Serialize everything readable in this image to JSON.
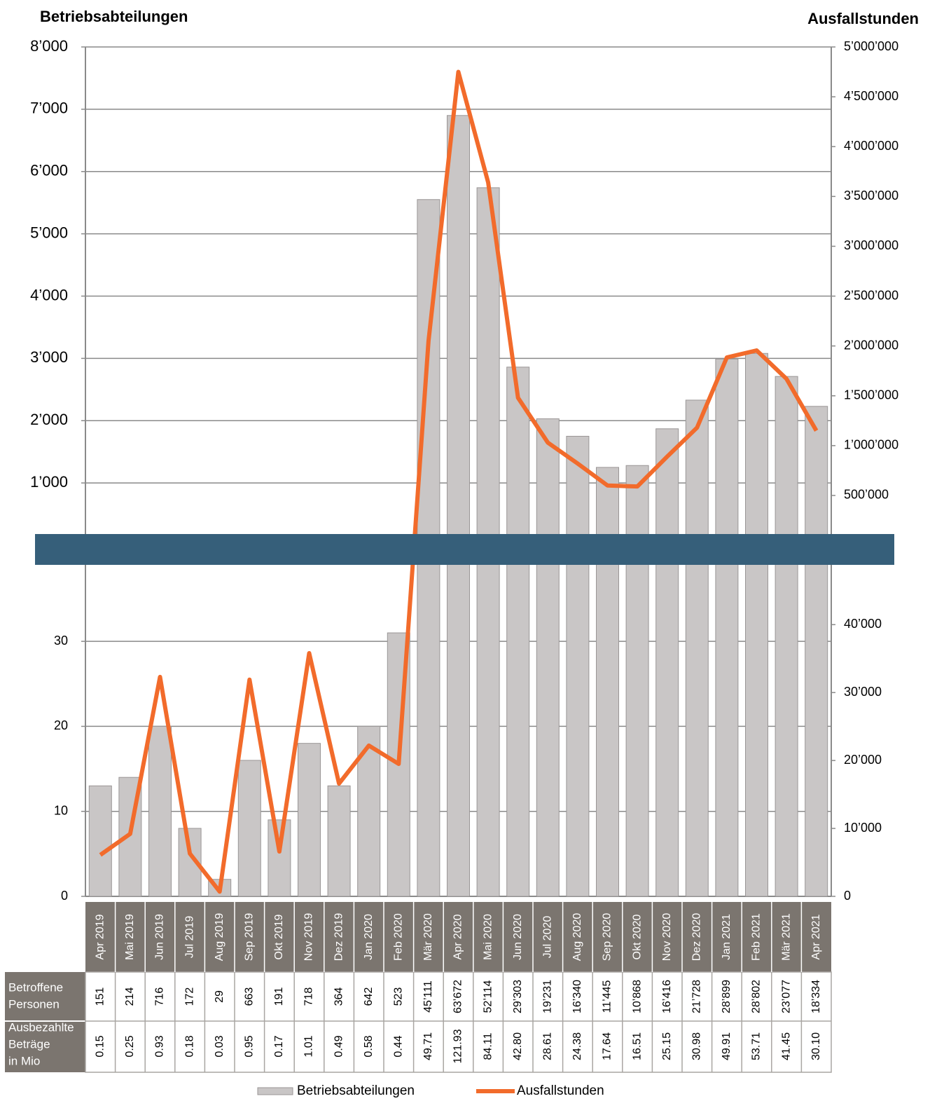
{
  "chart_data": {
    "type": "bar",
    "ylabel": "Betriebsabteilungen",
    "y2label": "Ausfallstunden",
    "categories": [
      "Apr 2019",
      "Mai 2019",
      "Jun 2019",
      "Jul 2019",
      "Aug 2019",
      "Sep 2019",
      "Okt 2019",
      "Nov 2019",
      "Dez 2019",
      "Jan 2020",
      "Feb 2020",
      "Mär 2020",
      "Apr 2020",
      "Mai 2020",
      "Jun 2020",
      "Jul 2020",
      "Aug 2020",
      "Sep 2020",
      "Okt 2020",
      "Nov 2020",
      "Dez 2020",
      "Jan 2021",
      "Feb 2021",
      "Mär 2021",
      "Apr 2021"
    ],
    "series": [
      {
        "name": "Betriebsabteilungen",
        "type": "bar",
        "color": "#c9c6c6",
        "values": [
          13,
          14,
          20,
          8,
          2,
          16,
          9,
          18,
          13,
          20,
          31,
          5550,
          6900,
          5740,
          2860,
          2030,
          1750,
          1250,
          1280,
          1870,
          2330,
          2990,
          3080,
          2710,
          2230
        ]
      },
      {
        "name": "Ausfallstunden",
        "type": "line",
        "color": "#f26b2b",
        "axis": "y2",
        "values": [
          6100,
          9200,
          32300,
          6300,
          700,
          31900,
          6600,
          35800,
          16600,
          22200,
          19500,
          2050000,
          4750000,
          3640000,
          1480000,
          1030000,
          820000,
          600000,
          590000,
          890000,
          1180000,
          1885000,
          1955000,
          1670000,
          1150000
        ]
      }
    ],
    "panels": [
      {
        "ylim": [
          180,
          8000
        ],
        "yticks": [
          {
            "value": 1000,
            "label": "1’000"
          },
          {
            "value": 2000,
            "label": "2’000"
          },
          {
            "value": 3000,
            "label": "3’000"
          },
          {
            "value": 4000,
            "label": "4’000"
          },
          {
            "value": 5000,
            "label": "5’000"
          },
          {
            "value": 6000,
            "label": "6’000"
          },
          {
            "value": 7000,
            "label": "7’000"
          },
          {
            "value": 8000,
            "label": "8’000"
          }
        ],
        "y2lim": [
          113000,
          5000000
        ],
        "y2ticks": [
          {
            "value": 500000,
            "label": "500’000"
          },
          {
            "value": 1000000,
            "label": "1’000’000"
          },
          {
            "value": 1500000,
            "label": "1’500’000"
          },
          {
            "value": 2000000,
            "label": "2’000’000"
          },
          {
            "value": 2500000,
            "label": "2’500’000"
          },
          {
            "value": 3000000,
            "label": "3’000’000"
          },
          {
            "value": 3500000,
            "label": "3’500’000"
          },
          {
            "value": 4000000,
            "label": "4’000’000"
          },
          {
            "value": 4500000,
            "label": "4’500’000"
          },
          {
            "value": 5000000,
            "label": "5’000’000"
          }
        ]
      },
      {
        "ylim": [
          0,
          39
        ],
        "yticks": [
          0,
          10,
          20,
          30
        ],
        "y2lim": [
          0,
          48800
        ],
        "y2ticks": [
          0,
          {
            "value": 10000,
            "label": "10’000"
          },
          {
            "value": 20000,
            "label": "20’000"
          },
          {
            "value": 30000,
            "label": "30’000"
          },
          {
            "value": 40000,
            "label": "40’000"
          }
        ]
      }
    ],
    "grid": true,
    "table": {
      "rows": [
        {
          "label": [
            "Betroffene",
            "Personen"
          ],
          "values": [
            "151",
            "214",
            "716",
            "172",
            "29",
            "663",
            "191",
            "718",
            "364",
            "642",
            "523",
            "45’111",
            "63’672",
            "52’114",
            "29’303",
            "19’231",
            "16’340",
            "11’445",
            "10’868",
            "16’416",
            "21’728",
            "28’899",
            "28’802",
            "23’077",
            "18’334"
          ]
        },
        {
          "label": [
            "Ausbezahlte",
            "Beträge",
            "in Mio"
          ],
          "values": [
            "0.15",
            "0.25",
            "0.93",
            "0.18",
            "0.03",
            "0.95",
            "0.17",
            "1.01",
            "0.49",
            "0.58",
            "0.44",
            "49.71",
            "121.93",
            "84.11",
            "42.80",
            "28.61",
            "24.38",
            "17.64",
            "16.51",
            "25.15",
            "30.98",
            "49.91",
            "53.71",
            "41.45",
            "30.10"
          ]
        }
      ]
    },
    "legend": "bottom"
  }
}
